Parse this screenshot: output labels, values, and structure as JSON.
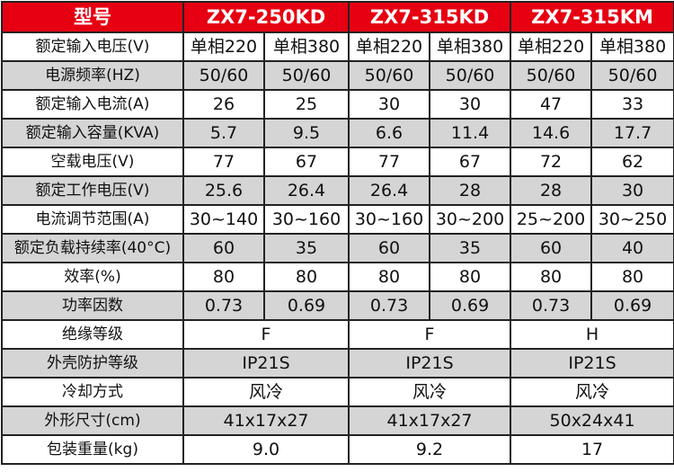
{
  "header": {
    "label": "型号",
    "models": [
      "ZX7-250KD",
      "ZX7-315KD",
      "ZX7-315KM"
    ]
  },
  "rows": [
    {
      "label": "额定输入电压(V)",
      "values": [
        "单相220",
        "单相380",
        "单相220",
        "单相380",
        "单相220",
        "单相380"
      ]
    },
    {
      "label": "电源频率(HZ)",
      "values": [
        "50/60",
        "50/60",
        "50/60",
        "50/60",
        "50/60",
        "50/60"
      ]
    },
    {
      "label": "额定输入电流(A)",
      "values": [
        "26",
        "25",
        "30",
        "30",
        "47",
        "33"
      ]
    },
    {
      "label": "额定输入容量(KVA)",
      "values": [
        "5.7",
        "9.5",
        "6.6",
        "11.4",
        "14.6",
        "17.7"
      ]
    },
    {
      "label": "空载电压(V)",
      "values": [
        "77",
        "67",
        "77",
        "67",
        "72",
        "62"
      ]
    },
    {
      "label": "额定工作电压(V)",
      "values": [
        "25.6",
        "26.4",
        "26.4",
        "28",
        "28",
        "30"
      ]
    },
    {
      "label": "电流调节范围(A)",
      "values": [
        "30~140",
        "30~160",
        "30~160",
        "30~200",
        "25~200",
        "30~250"
      ]
    },
    {
      "label": "额定负载持续率(40°C)",
      "values": [
        "60",
        "35",
        "60",
        "35",
        "60",
        "40"
      ]
    },
    {
      "label": "效率(%)",
      "values": [
        "80",
        "80",
        "80",
        "80",
        "80",
        "80"
      ]
    },
    {
      "label": "功率因数",
      "values": [
        "0.73",
        "0.69",
        "0.73",
        "0.69",
        "0.73",
        "0.69"
      ]
    },
    {
      "label": "绝缘等级",
      "values": [
        "F",
        "F",
        "H"
      ]
    },
    {
      "label": "外壳防护等级",
      "values": [
        "IP21S",
        "IP21S",
        "IP21S"
      ]
    },
    {
      "label": "冷却方式",
      "values": [
        "风冷",
        "风冷",
        "风冷"
      ]
    },
    {
      "label": "外形尺寸(cm)",
      "values": [
        "41x17x27",
        "41x17x27",
        "50x24x41"
      ]
    },
    {
      "label": "包装重量(kg)",
      "values": [
        "9.0",
        "9.2",
        "17"
      ]
    }
  ]
}
